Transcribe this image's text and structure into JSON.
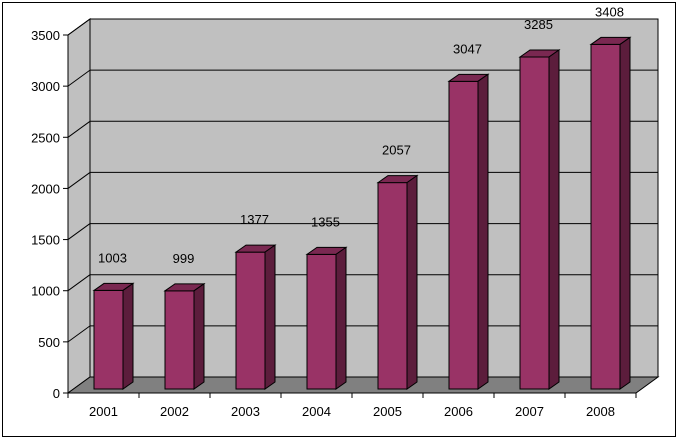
{
  "chart_data": {
    "type": "bar",
    "title": "",
    "xlabel": "",
    "ylabel": "",
    "categories": [
      "2001",
      "2002",
      "2003",
      "2004",
      "2005",
      "2006",
      "2007",
      "2008"
    ],
    "values": [
      1003,
      999,
      1377,
      1355,
      2057,
      3047,
      3285,
      3408
    ],
    "ylim": [
      0,
      3500
    ],
    "y_ticks": [
      "0",
      "500",
      "1000",
      "1500",
      "2000",
      "2500",
      "3000",
      "3500"
    ],
    "grid": true,
    "legend": "none",
    "style": "3d-column",
    "colors": {
      "bar_front": "#993366",
      "bar_top": "#7a2851",
      "bar_side": "#5c1d3c",
      "wall": "#c0c0c0",
      "floor": "#808080"
    }
  }
}
